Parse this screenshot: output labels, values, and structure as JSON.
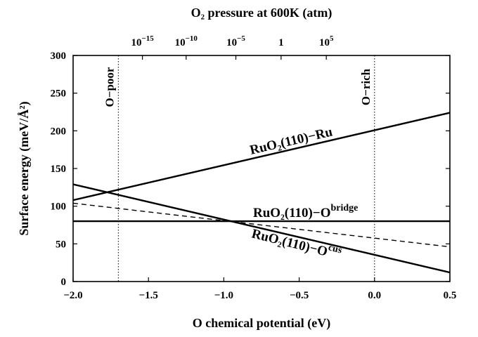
{
  "chart_data": {
    "type": "line",
    "xlabel": "O chemical potential  (eV)",
    "ylabel": "Surface energy  (meV/Å²)",
    "top_axis_label": "O₂ pressure at 600K (atm)",
    "xlim": [
      -2.0,
      0.5
    ],
    "ylim": [
      0,
      300
    ],
    "x_ticks": [
      -2.0,
      -1.5,
      -1.0,
      -0.5,
      0.0,
      0.5
    ],
    "x_tick_labels": [
      "−2.0",
      "−1.5",
      "−1.0",
      "−0.5",
      "0.0",
      "0.5"
    ],
    "y_ticks": [
      0,
      50,
      100,
      150,
      200,
      250,
      300
    ],
    "y_tick_labels": [
      "0",
      "50",
      "100",
      "150",
      "200",
      "250",
      "300"
    ],
    "top_ticks": [
      {
        "x": -1.54,
        "label": "10",
        "exp": "−15"
      },
      {
        "x": -1.25,
        "label": "10",
        "exp": "−10"
      },
      {
        "x": -0.92,
        "label": "10",
        "exp": "−5"
      },
      {
        "x": -0.62,
        "label": "1",
        "exp": ""
      },
      {
        "x": -0.32,
        "label": "10",
        "exp": "5"
      }
    ],
    "vertical_markers": [
      {
        "x": -1.7,
        "label": "O−poor"
      },
      {
        "x": 0.0,
        "label": "O−rich"
      }
    ],
    "grid": false,
    "series": [
      {
        "label": "RuO₂(110)−Ru",
        "style": "solid",
        "points": [
          [
            -2.0,
            108
          ],
          [
            0.5,
            224
          ]
        ]
      },
      {
        "label": "RuO₂(110)−O",
        "sup": "bridge",
        "style": "solid",
        "points": [
          [
            -2.0,
            80
          ],
          [
            0.5,
            80
          ]
        ]
      },
      {
        "label": "RuO₂(110)−O",
        "sup": "cus",
        "style": "solid",
        "points": [
          [
            -2.0,
            129
          ],
          [
            0.5,
            12
          ]
        ]
      },
      {
        "label": "",
        "style": "dashed",
        "points": [
          [
            -2.0,
            104
          ],
          [
            0.5,
            46
          ]
        ]
      }
    ]
  }
}
